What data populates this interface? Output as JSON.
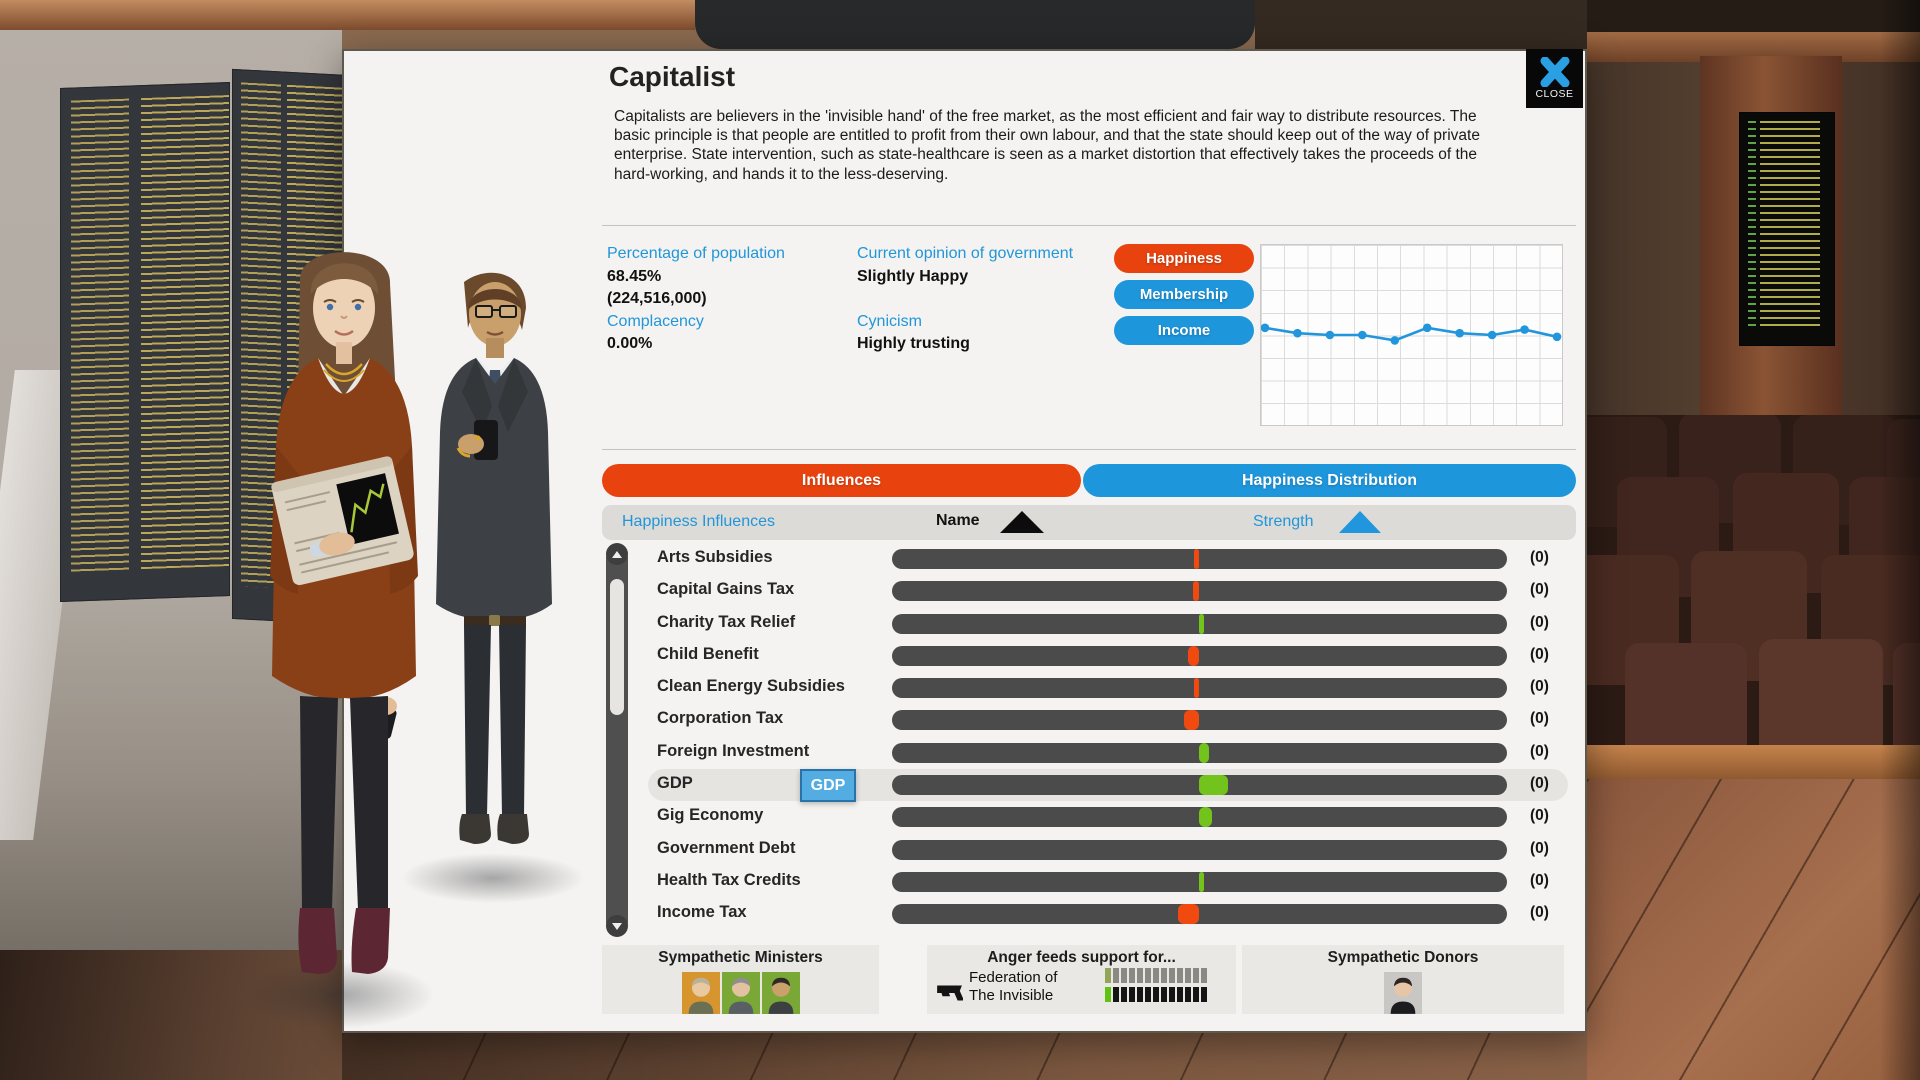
{
  "window": {
    "title": "Capitalist",
    "close_label": "CLOSE"
  },
  "panel": {
    "description": "Capitalists are believers in the 'invisible hand' of the free market, as the most efficient and fair way to distribute resources. The basic principle is that people are entitled to profit from their own labour, and that the state should keep out of the way of private enterprise. State intervention, such as state-healthcare is seen as a market distortion that effectively takes the proceeds of the hard-working, and hands it to the less-deserving."
  },
  "stats": {
    "population_label": "Percentage of population",
    "population_pct": "68.45%",
    "population_count": "(224,516,000)",
    "complacency_label": "Complacency",
    "complacency_value": "0.00%",
    "opinion_label": "Current opinion of government",
    "opinion_value": "Slightly Happy",
    "cynicism_label": "Cynicism",
    "cynicism_value": "Highly trusting"
  },
  "legend_buttons": [
    {
      "label": "Happiness",
      "color": "#e8430e"
    },
    {
      "label": "Membership",
      "color": "#1e96dc"
    },
    {
      "label": "Income",
      "color": "#1e96dc"
    }
  ],
  "chart_data": {
    "type": "line",
    "title": "",
    "xlabel": "",
    "ylabel": "",
    "x": [
      1,
      2,
      3,
      4,
      5,
      6,
      7,
      8,
      9,
      10
    ],
    "series": [
      {
        "name": "Income",
        "color": "#2196dc",
        "values": [
          54,
          51,
          50,
          50,
          47,
          54,
          51,
          50,
          53,
          49
        ]
      }
    ],
    "ylim": [
      0,
      100
    ],
    "grid": true,
    "axis_labels_visible": false,
    "legend_position": "none"
  },
  "tabs": [
    {
      "label": "Influences",
      "color": "#e8430e",
      "active": true
    },
    {
      "label": "Happiness Distribution",
      "color": "#1e96dc",
      "active": false
    }
  ],
  "table": {
    "left_header": "Happiness Influences",
    "name_header": "Name",
    "strength_header": "Strength"
  },
  "influences": {
    "rows": [
      {
        "name": "Arts Subsidies",
        "value": "(0)",
        "bar": {
          "dir": "neg",
          "w": 5
        }
      },
      {
        "name": "Capital Gains Tax",
        "value": "(0)",
        "bar": {
          "dir": "neg",
          "w": 6
        }
      },
      {
        "name": "Charity Tax Relief",
        "value": "(0)",
        "bar": {
          "dir": "pos",
          "w": 5
        }
      },
      {
        "name": "Child Benefit",
        "value": "(0)",
        "bar": {
          "dir": "neg",
          "w": 11
        }
      },
      {
        "name": "Clean Energy Subsidies",
        "value": "(0)",
        "bar": {
          "dir": "neg",
          "w": 5
        }
      },
      {
        "name": "Corporation Tax",
        "value": "(0)",
        "bar": {
          "dir": "neg",
          "w": 15
        }
      },
      {
        "name": "Foreign Investment",
        "value": "(0)",
        "bar": {
          "dir": "pos",
          "w": 10
        }
      },
      {
        "name": "GDP",
        "value": "(0)",
        "bar": {
          "dir": "pos",
          "w": 29
        },
        "highlight": true,
        "tag": "GDP"
      },
      {
        "name": "Gig Economy",
        "value": "(0)",
        "bar": {
          "dir": "pos",
          "w": 13
        }
      },
      {
        "name": "Government Debt",
        "value": "(0)",
        "bar": {
          "dir": "none",
          "w": 0
        }
      },
      {
        "name": "Health Tax Credits",
        "value": "(0)",
        "bar": {
          "dir": "pos",
          "w": 5
        }
      },
      {
        "name": "Income Tax",
        "value": "(0)",
        "bar": {
          "dir": "neg",
          "w": 21
        }
      }
    ]
  },
  "footer": {
    "ministers": {
      "label": "Sympathetic Ministers",
      "portraits": [
        {
          "bg": "#d6952f",
          "skin": "#e9c9a0",
          "hair": "#b8b29a",
          "shirt": "#6b6f54"
        },
        {
          "bg": "#79a836",
          "skin": "#e3c2a2",
          "hair": "#8f8f8f",
          "shirt": "#5a5f66"
        },
        {
          "bg": "#79a836",
          "skin": "#caa06b",
          "hair": "#2e2a28",
          "shirt": "#3c4043"
        }
      ]
    },
    "anger": {
      "label": "Anger feeds support for...",
      "org_line1": "Federation of",
      "org_line2": "The Invisible",
      "bars": [
        {
          "segments": 13,
          "filled": 1,
          "fill": "#93a55a",
          "empty": "#8a8a85"
        },
        {
          "segments": 13,
          "filled": 1,
          "fill": "#62c212",
          "empty": "#151515"
        }
      ]
    },
    "donors": {
      "label": "Sympathetic Donors",
      "portraits": [
        {
          "bg": "#c9c7c3",
          "skin": "#e6c6a6",
          "hair": "#2b2523",
          "shirt": "#1c1c1e"
        }
      ]
    }
  },
  "colors": {
    "accent_blue": "#2196d9",
    "accent_orange": "#e8430e",
    "positive": "#72c41c",
    "negative": "#f04a10",
    "track": "#4b4b4b",
    "tooltip_bg": "#53ade3",
    "tooltip_border": "#2a72a8"
  }
}
